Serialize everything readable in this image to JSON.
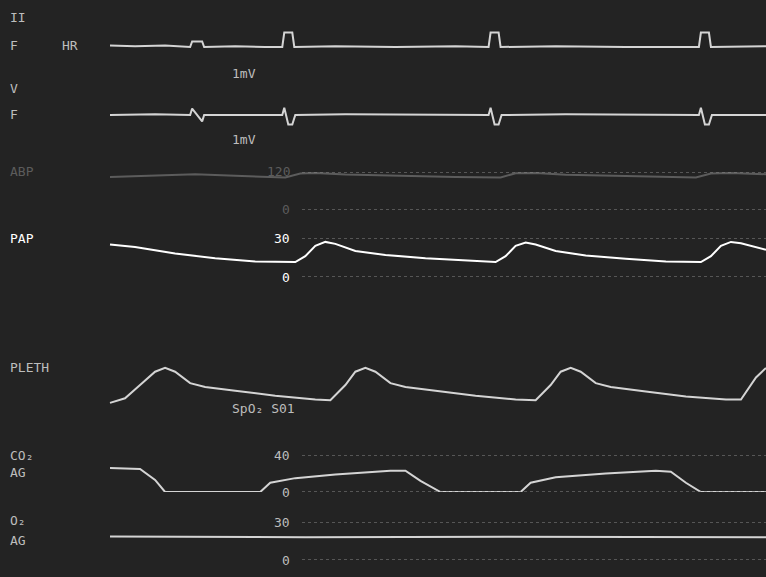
{
  "chart_data": [
    {
      "type": "line",
      "title": "II",
      "annotations": [
        "F",
        "HR",
        "1mV"
      ],
      "color": "#d4d4d4",
      "tick_labels": false,
      "xlim": [
        0,
        6.6
      ],
      "ylim": [
        -1.25,
        1.25
      ],
      "x": [
        0.05,
        0.3,
        0.6,
        0.85,
        0.87,
        0.97,
        0.99,
        1.3,
        1.6,
        1.77,
        1.79,
        1.87,
        1.89,
        2.3,
        2.9,
        3.5,
        3.83,
        3.85,
        3.93,
        3.95,
        4.5,
        5.2,
        5.93,
        5.95,
        6.03,
        6.05,
        6.6
      ],
      "values": [
        0.1,
        0.05,
        0.1,
        0,
        0.35,
        0.35,
        0,
        0.05,
        0,
        0,
        0.9,
        0.9,
        0,
        0.05,
        0,
        0.05,
        0,
        0.9,
        0.9,
        0,
        0.05,
        0,
        0,
        0.9,
        0.9,
        0,
        0.05
      ]
    },
    {
      "type": "line",
      "title": "V",
      "annotations": [
        "F",
        "1mV"
      ],
      "color": "#d4d4d4",
      "tick_labels": false,
      "xlim": [
        0,
        6.6
      ],
      "ylim": [
        -1.25,
        1.25
      ],
      "x": [
        0.05,
        0.5,
        0.85,
        0.87,
        0.97,
        0.99,
        1.4,
        1.77,
        1.79,
        1.83,
        1.87,
        1.9,
        2.4,
        3.2,
        3.83,
        3.85,
        3.89,
        3.93,
        3.96,
        4.6,
        5.3,
        5.93,
        5.95,
        5.99,
        6.03,
        6.06,
        6.6
      ],
      "values": [
        0,
        0.05,
        0,
        0.4,
        -0.4,
        0,
        0,
        0,
        0.45,
        -0.6,
        -0.6,
        0,
        0.05,
        0,
        0,
        0.45,
        -0.6,
        -0.6,
        0,
        0.05,
        0,
        0,
        0.45,
        -0.6,
        -0.6,
        0,
        0
      ]
    },
    {
      "type": "line",
      "title": "ABP",
      "color": "#5c5c5c",
      "xlim": [
        0,
        6.6
      ],
      "ylim": [
        0,
        120
      ],
      "yticks": [
        0,
        120
      ],
      "x": [
        0.05,
        0.5,
        0.9,
        1.3,
        1.8,
        1.95,
        2.1,
        2.4,
        2.9,
        3.5,
        3.95,
        4.1,
        4.3,
        4.6,
        5.2,
        5.9,
        6.05,
        6.25,
        6.6
      ],
      "values": [
        104,
        110,
        113,
        108,
        103,
        115,
        117,
        112,
        108,
        104,
        103,
        116,
        117,
        111,
        107,
        103,
        115,
        117,
        113
      ]
    },
    {
      "type": "line",
      "title": "PAP",
      "color": "#ffffff",
      "xlim": [
        0,
        6.6
      ],
      "ylim": [
        0,
        30
      ],
      "yticks": [
        0,
        30
      ],
      "x": [
        0.05,
        0.3,
        0.7,
        1.1,
        1.5,
        1.9,
        2.0,
        2.1,
        2.2,
        2.3,
        2.5,
        2.8,
        3.2,
        3.6,
        3.9,
        4.0,
        4.1,
        4.2,
        4.3,
        4.5,
        4.8,
        5.2,
        5.6,
        5.95,
        6.05,
        6.15,
        6.25,
        6.35,
        6.6
      ],
      "values": [
        25,
        23,
        18,
        14.5,
        12,
        11.5,
        16,
        24,
        27,
        25.5,
        20,
        17,
        14.5,
        12.5,
        11.5,
        16,
        24,
        26.5,
        25,
        20,
        16.5,
        14,
        12,
        11.5,
        16,
        24,
        27,
        26,
        21
      ]
    },
    {
      "type": "line",
      "title": "PLETH",
      "annotations": [
        "SpO₂ S01"
      ],
      "color": "#d4d4d4",
      "tick_labels": false,
      "xlim": [
        0,
        6.6
      ],
      "ylim": [
        0,
        1
      ],
      "x": [
        0.05,
        0.2,
        0.35,
        0.5,
        0.6,
        0.7,
        0.85,
        1.0,
        1.3,
        1.7,
        2.1,
        2.25,
        2.4,
        2.5,
        2.6,
        2.7,
        2.85,
        3.0,
        3.3,
        3.7,
        4.1,
        4.3,
        4.45,
        4.55,
        4.65,
        4.75,
        4.9,
        5.05,
        5.4,
        5.8,
        6.2,
        6.35,
        6.5,
        6.6
      ],
      "values": [
        0.03,
        0.15,
        0.5,
        0.85,
        0.95,
        0.85,
        0.55,
        0.45,
        0.35,
        0.22,
        0.12,
        0.1,
        0.5,
        0.85,
        0.95,
        0.85,
        0.55,
        0.45,
        0.35,
        0.22,
        0.12,
        0.1,
        0.5,
        0.85,
        0.95,
        0.85,
        0.55,
        0.45,
        0.33,
        0.2,
        0.12,
        0.12,
        0.7,
        0.95
      ]
    },
    {
      "type": "line",
      "title": "CO₂",
      "annotations": [
        "AG"
      ],
      "color": "#d4d4d4",
      "xlim": [
        0,
        6.6
      ],
      "ylim": [
        0,
        40
      ],
      "yticks": [
        0,
        40
      ],
      "x": [
        0.05,
        0.35,
        0.5,
        0.6,
        1.55,
        1.65,
        1.9,
        2.3,
        2.85,
        3.0,
        3.15,
        3.35,
        4.15,
        4.25,
        4.5,
        5.0,
        5.5,
        5.65,
        5.8,
        5.95,
        6.6
      ],
      "values": [
        26,
        25,
        13,
        0,
        0,
        10,
        15,
        19,
        23,
        23,
        12,
        0,
        0,
        10,
        16,
        20,
        23,
        22,
        10,
        0,
        0
      ]
    },
    {
      "type": "line",
      "title": "O₂",
      "annotations": [
        "AG"
      ],
      "color": "#d4d4d4",
      "xlim": [
        0,
        6.6
      ],
      "ylim": [
        0,
        30
      ],
      "yticks": [
        0,
        30
      ],
      "x": [
        0.05,
        2.0,
        4.0,
        6.6
      ],
      "values": [
        18.5,
        18,
        18.3,
        18
      ]
    }
  ]
}
